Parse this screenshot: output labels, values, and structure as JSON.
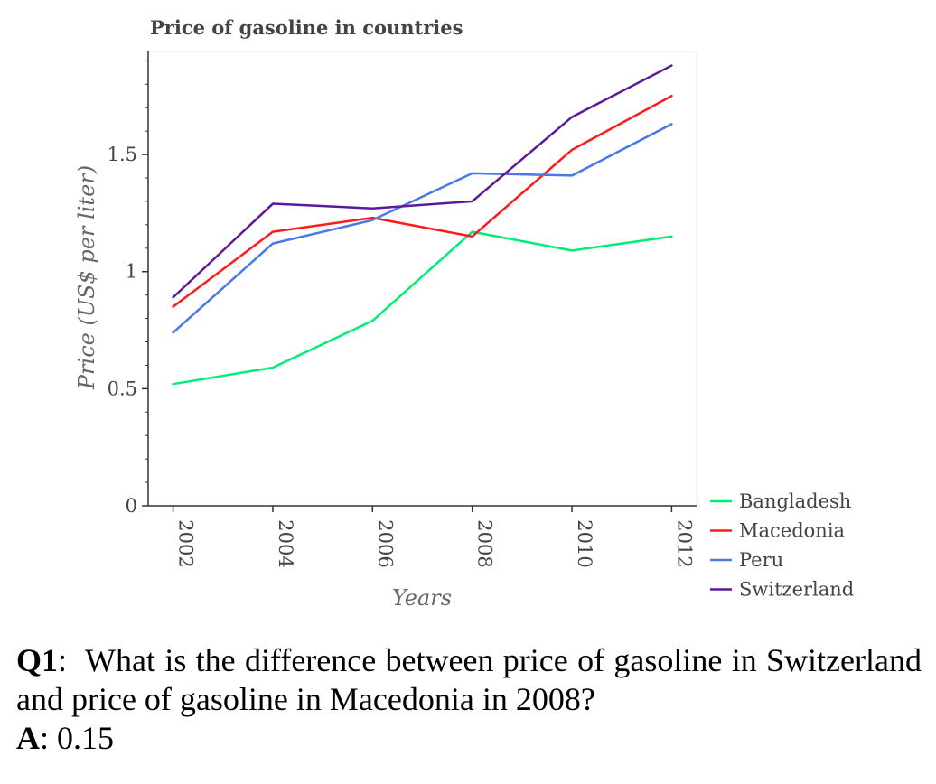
{
  "chart_data": {
    "type": "line",
    "title": "Price of gasoline in countries",
    "xlabel": "Years",
    "ylabel": "Price (US$ per liter)",
    "x": [
      2002,
      2004,
      2006,
      2008,
      2010,
      2012
    ],
    "x_tick_labels": [
      "2002",
      "2004",
      "2006",
      "2008",
      "2010",
      "2012"
    ],
    "y_ticks": [
      0,
      0.5,
      1,
      1.5
    ],
    "y_tick_labels": [
      "0",
      "0.5",
      "1",
      "1.5"
    ],
    "xlim": [
      2001.5,
      2012.5
    ],
    "ylim": [
      0,
      1.94
    ],
    "grid": false,
    "legend_position": "bottom-right outside",
    "series": [
      {
        "name": "Bangladesh",
        "color": "#00ee76",
        "values": [
          0.52,
          0.59,
          0.79,
          1.17,
          1.09,
          1.15
        ]
      },
      {
        "name": "Macedonia",
        "color": "#ff1a1a",
        "values": [
          0.85,
          1.17,
          1.23,
          1.15,
          1.52,
          1.75
        ]
      },
      {
        "name": "Peru",
        "color": "#4a78e8",
        "values": [
          0.74,
          1.12,
          1.22,
          1.42,
          1.41,
          1.63
        ]
      },
      {
        "name": "Switzerland",
        "color": "#5a1a99",
        "values": [
          0.89,
          1.29,
          1.27,
          1.3,
          1.66,
          1.88
        ]
      }
    ]
  },
  "qa": {
    "question_key": "Q1",
    "question_sep": ":",
    "question_text": "What is the difference between price of gasoline in Switzerland and price of gasoline in Macedonia in 2008?",
    "answer_key": "A",
    "answer_sep": ":",
    "answer_text": "0.15"
  }
}
